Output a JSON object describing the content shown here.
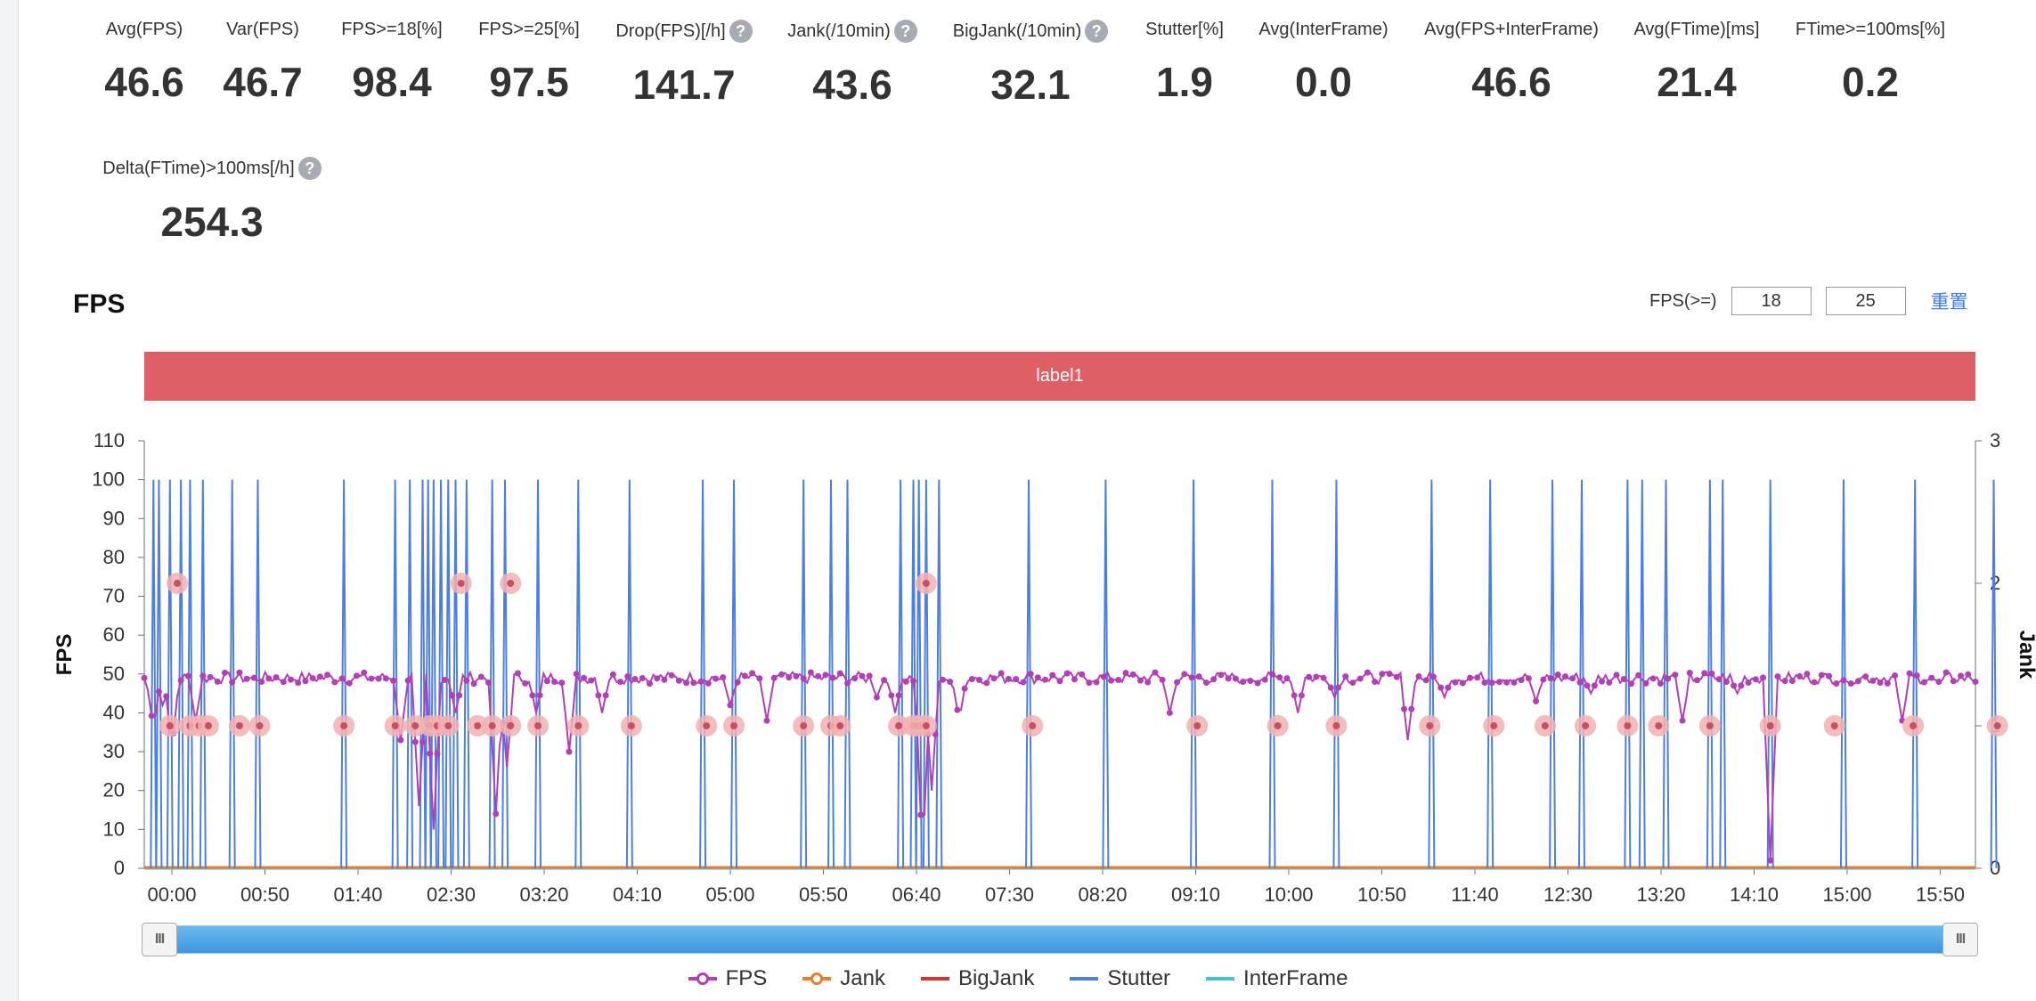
{
  "metrics_row1": [
    {
      "label": "Avg(FPS)",
      "value": "46.6",
      "help": false
    },
    {
      "label": "Var(FPS)",
      "value": "46.7",
      "help": false
    },
    {
      "label": "FPS>=18[%]",
      "value": "98.4",
      "help": false
    },
    {
      "label": "FPS>=25[%]",
      "value": "97.5",
      "help": false
    },
    {
      "label": "Drop(FPS)[/h]",
      "value": "141.7",
      "help": true
    },
    {
      "label": "Jank(/10min)",
      "value": "43.6",
      "help": true
    },
    {
      "label": "BigJank(/10min)",
      "value": "32.1",
      "help": true
    },
    {
      "label": "Stutter[%]",
      "value": "1.9",
      "help": false
    },
    {
      "label": "Avg(InterFrame)",
      "value": "0.0",
      "help": false
    },
    {
      "label": "Avg(FPS+InterFrame)",
      "value": "46.6",
      "help": false
    },
    {
      "label": "Avg(FTime)[ms]",
      "value": "21.4",
      "help": false
    },
    {
      "label": "FTime>=100ms[%]",
      "value": "0.2",
      "help": false
    }
  ],
  "metrics_row2": [
    {
      "label": "Delta(FTime)>100ms[/h]",
      "value": "254.3",
      "help": true
    }
  ],
  "help_glyph": "?",
  "chart_section": {
    "title": "FPS",
    "filter_label": "FPS(>=)",
    "filter_value_1": "18",
    "filter_value_2": "25",
    "reset_label": "重置",
    "label_bar_text": "label1"
  },
  "slider": {
    "handle_glyph": "III",
    "start": 0.0,
    "end": 1.0
  },
  "legend": [
    {
      "name": "FPS",
      "color": "#b23fb5",
      "marker": true
    },
    {
      "name": "Jank",
      "color": "#ec7c2f",
      "marker": true
    },
    {
      "name": "BigJank",
      "color": "#d9322b",
      "marker": false
    },
    {
      "name": "Stutter",
      "color": "#4e7fe0",
      "marker": false
    },
    {
      "name": "InterFrame",
      "color": "#3fc4d8",
      "marker": false
    }
  ],
  "chart_data": {
    "type": "line",
    "ylabel": "FPS",
    "y2label": "Jank",
    "ylim": [
      0,
      110
    ],
    "yticks": [
      0,
      10,
      20,
      30,
      40,
      50,
      60,
      70,
      80,
      90,
      100,
      110
    ],
    "y2lim": [
      0,
      3
    ],
    "y2ticks": [
      0,
      1,
      2,
      3
    ],
    "x_tick_labels": [
      "00:00",
      "00:50",
      "01:40",
      "02:30",
      "03:20",
      "04:10",
      "05:00",
      "05:50",
      "06:40",
      "07:30",
      "08:20",
      "09:10",
      "10:00",
      "10:50",
      "11:40",
      "12:30",
      "13:20",
      "14:10",
      "15:00",
      "15:50"
    ],
    "xlim_seconds": [
      0,
      1000
    ],
    "series": [
      {
        "name": "FPS",
        "color": "#b23fb5",
        "baseline": 49,
        "dips": [
          [
            1,
            53
          ],
          [
            5,
            36
          ],
          [
            10,
            42
          ],
          [
            15,
            30
          ],
          [
            22,
            50
          ],
          [
            28,
            38
          ],
          [
            38,
            55
          ],
          [
            60,
            49
          ],
          [
            140,
            33
          ],
          [
            150,
            16
          ],
          [
            158,
            10
          ],
          [
            170,
            40
          ],
          [
            192,
            14
          ],
          [
            198,
            26
          ],
          [
            214,
            40
          ],
          [
            232,
            30
          ],
          [
            250,
            40
          ],
          [
            320,
            42
          ],
          [
            340,
            38
          ],
          [
            400,
            44
          ],
          [
            410,
            40
          ],
          [
            425,
            2
          ],
          [
            430,
            20
          ],
          [
            440,
            48
          ],
          [
            445,
            38
          ],
          [
            560,
            40
          ],
          [
            600,
            48
          ],
          [
            630,
            40
          ],
          [
            650,
            44
          ],
          [
            690,
            33
          ],
          [
            710,
            44
          ],
          [
            760,
            43
          ],
          [
            790,
            45
          ],
          [
            840,
            38
          ],
          [
            870,
            45
          ],
          [
            888,
            2
          ],
          [
            930,
            48
          ],
          [
            960,
            38
          ],
          [
            980,
            48
          ],
          [
            1000,
            48
          ]
        ]
      },
      {
        "name": "Jank",
        "color": "#ec7c2f",
        "events_seconds": [
          14,
          25,
          30,
          35,
          52,
          63,
          109,
          137,
          148,
          156,
          160,
          166,
          182,
          190,
          200,
          215,
          237,
          266,
          307,
          322,
          360,
          375,
          380,
          412,
          420,
          423,
          427,
          485,
          575,
          619,
          651,
          702,
          737,
          765,
          787,
          810,
          827,
          855,
          888,
          923,
          966,
          1012
        ],
        "values": 1
      },
      {
        "name": "BigJank",
        "color": "#d9322b",
        "events_seconds": [
          18,
          173,
          200,
          427
        ],
        "values": 2
      },
      {
        "name": "Stutter",
        "color": "#4e7fe0",
        "spikes_seconds": [
          5,
          8,
          14,
          20,
          25,
          32,
          48,
          62,
          109,
          137,
          145,
          152,
          155,
          158,
          162,
          166,
          170,
          176,
          190,
          197,
          215,
          237,
          265,
          305,
          322,
          360,
          375,
          384,
          413,
          420,
          423,
          427,
          434,
          483,
          525,
          573,
          616,
          651,
          703,
          735,
          769,
          785,
          810,
          818,
          831,
          855,
          862,
          888,
          928,
          967,
          1010
        ],
        "spike_height": 100
      },
      {
        "name": "InterFrame",
        "color": "#3fc4d8",
        "constant": 0
      }
    ]
  }
}
